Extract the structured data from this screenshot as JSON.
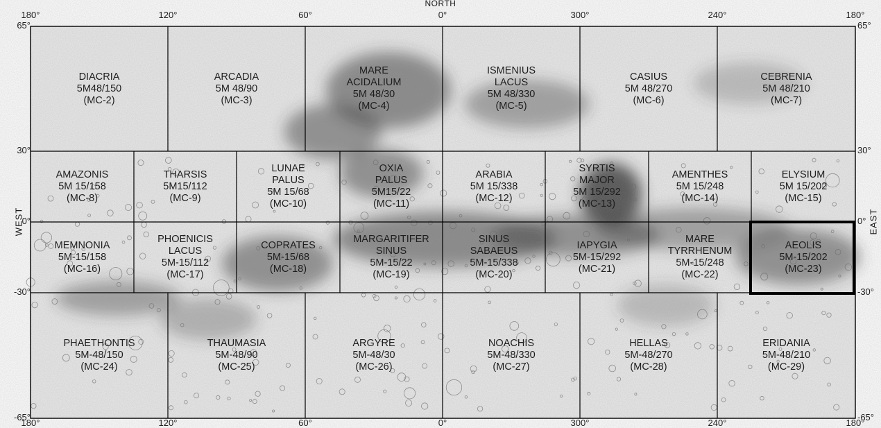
{
  "map": {
    "north_label": "NORTH",
    "west_label": "WEST",
    "east_label": "EAST",
    "top_longitude_labels": [
      "180°",
      "120°",
      "60°",
      "0°",
      "300°",
      "240°",
      "180°"
    ],
    "bottom_longitude_labels": [
      "180°",
      "120°",
      "60°",
      "0°",
      "300°",
      "240°",
      "180°"
    ],
    "left_latitude_labels": [
      "65°",
      "30°",
      "0°",
      "-30°",
      "-65°"
    ],
    "right_latitude_labels": [
      "65°",
      "30°",
      "0°",
      "-30°",
      "-65°"
    ],
    "highlighted_quadrangle": "MC-23",
    "colors": {
      "border": "#000000",
      "highlight": "#000000",
      "terrain_light": "#ececec",
      "terrain_dark": "#5a5a5a"
    },
    "quadrangles": [
      {
        "id": "MC-2",
        "lines": [
          "DIACRIA",
          "5M48/150",
          "(MC-2)"
        ]
      },
      {
        "id": "MC-3",
        "lines": [
          "ARCADIA",
          "5M 48/90",
          "(MC-3)"
        ]
      },
      {
        "id": "MC-4",
        "lines": [
          "MARE",
          "ACIDALIUM",
          "5M 48/30",
          "(MC-4)"
        ]
      },
      {
        "id": "MC-5",
        "lines": [
          "ISMENIUS",
          "LACUS",
          "5M 48/330",
          "(MC-5)"
        ]
      },
      {
        "id": "MC-6",
        "lines": [
          "CASIUS",
          "5M 48/270",
          "(MC-6)"
        ]
      },
      {
        "id": "MC-7",
        "lines": [
          "CEBRENIA",
          "5M 48/210",
          "(MC-7)"
        ]
      },
      {
        "id": "MC-8",
        "lines": [
          "AMAZONIS",
          "5M 15/158",
          "(MC-8)"
        ]
      },
      {
        "id": "MC-9",
        "lines": [
          "THARSIS",
          "5M15/112",
          "(MC-9)"
        ]
      },
      {
        "id": "MC-10",
        "lines": [
          "LUNAE",
          "PALUS",
          "5M 15/68",
          "(MC-10)"
        ]
      },
      {
        "id": "MC-11",
        "lines": [
          "OXIA",
          "PALUS",
          "5M15/22",
          "(MC-11)"
        ]
      },
      {
        "id": "MC-12",
        "lines": [
          "ARABIA",
          "5M 15/338",
          "(MC-12)"
        ]
      },
      {
        "id": "MC-13",
        "lines": [
          "SYRTIS",
          "MAJOR",
          "5M 15/292",
          "(MC-13)"
        ]
      },
      {
        "id": "MC-14",
        "lines": [
          "AMENTHES",
          "5M 15/248",
          "(MC-14)"
        ]
      },
      {
        "id": "MC-15",
        "lines": [
          "ELYSIUM",
          "5M 15/202",
          "(MC-15)"
        ]
      },
      {
        "id": "MC-16",
        "lines": [
          "MEMNONIA",
          "5M-15/158",
          "(MC-16)"
        ]
      },
      {
        "id": "MC-17",
        "lines": [
          "PHOENICIS",
          "LACUS",
          "5M-15/112",
          "(MC-17)"
        ]
      },
      {
        "id": "MC-18",
        "lines": [
          "COPRATES",
          "5M-15/68",
          "(MC-18)"
        ]
      },
      {
        "id": "MC-19",
        "lines": [
          "MARGARITIFER",
          "SINUS",
          "5M-15/22",
          "(MC-19)"
        ]
      },
      {
        "id": "MC-20",
        "lines": [
          "SINUS",
          "SABAEUS",
          "5M-15/338",
          "(MC-20)"
        ]
      },
      {
        "id": "MC-21",
        "lines": [
          "IAPYGIA",
          "5M-15/292",
          "(MC-21)"
        ]
      },
      {
        "id": "MC-22",
        "lines": [
          "MARE",
          "TYRRHENUM",
          "5M-15/248",
          "(MC-22)"
        ]
      },
      {
        "id": "MC-23",
        "lines": [
          "AEOLIS",
          "5M-15/202",
          "(MC-23)"
        ]
      },
      {
        "id": "MC-24",
        "lines": [
          "PHAETHONTIS",
          "5M-48/150",
          "(MC-24)"
        ]
      },
      {
        "id": "MC-25",
        "lines": [
          "THAUMASIA",
          "5M-48/90",
          "(MC-25)"
        ]
      },
      {
        "id": "MC-26",
        "lines": [
          "ARGYRE",
          "5M-48/30",
          "(MC-26)"
        ]
      },
      {
        "id": "MC-27",
        "lines": [
          "NOACHIS",
          "5M-48/330",
          "(MC-27)"
        ]
      },
      {
        "id": "MC-28",
        "lines": [
          "HELLAS",
          "5M-48/270",
          "(MC-28)"
        ]
      },
      {
        "id": "MC-29",
        "lines": [
          "ERIDANIA",
          "5M-48/210",
          "(MC-29)"
        ]
      }
    ]
  }
}
